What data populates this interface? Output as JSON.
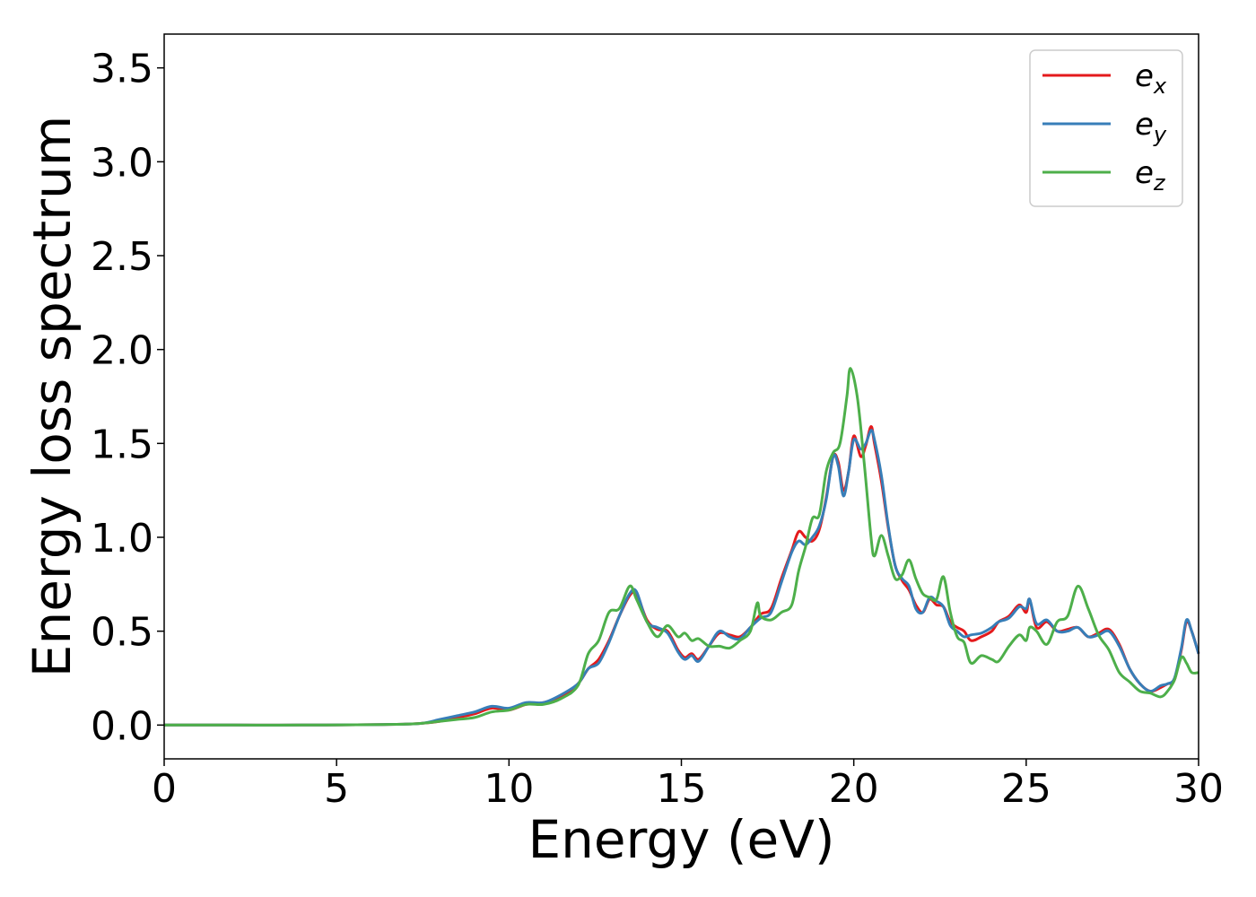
{
  "chart_data": {
    "type": "line",
    "title": "",
    "xlabel": "Energy (eV)",
    "ylabel": "Energy loss spectrum",
    "xlim": [
      0,
      30
    ],
    "ylim": [
      -0.18,
      3.68
    ],
    "xticks": [
      0,
      5,
      10,
      15,
      20,
      25,
      30
    ],
    "xtick_labels": [
      "0",
      "5",
      "10",
      "15",
      "20",
      "25",
      "30"
    ],
    "yticks": [
      0.0,
      0.5,
      1.0,
      1.5,
      2.0,
      2.5,
      3.0,
      3.5
    ],
    "ytick_labels": [
      "0.0",
      "0.5",
      "1.0",
      "1.5",
      "2.0",
      "2.5",
      "3.0",
      "3.5"
    ],
    "grid": false,
    "legend_position": "top-right",
    "series": [
      {
        "name": "e",
        "subscript": "x",
        "color": "#e41a1c",
        "x": [
          0,
          2,
          4,
          6,
          7,
          7.5,
          8,
          8.5,
          9,
          9.5,
          10,
          10.5,
          11,
          11.5,
          12,
          12.3,
          12.6,
          12.9,
          13.2,
          13.5,
          13.7,
          14,
          14.3,
          14.6,
          14.9,
          15.1,
          15.3,
          15.5,
          15.8,
          16.1,
          16.4,
          16.7,
          17,
          17.3,
          17.6,
          17.9,
          18.2,
          18.4,
          18.6,
          18.8,
          19,
          19.2,
          19.4,
          19.55,
          19.7,
          19.85,
          20,
          20.2,
          20.35,
          20.5,
          20.6,
          20.8,
          21,
          21.2,
          21.4,
          21.6,
          21.8,
          22,
          22.2,
          22.4,
          22.6,
          22.8,
          23,
          23.2,
          23.4,
          23.7,
          24,
          24.2,
          24.5,
          24.8,
          25,
          25.1,
          25.3,
          25.6,
          25.9,
          26.2,
          26.5,
          26.8,
          27.1,
          27.4,
          27.7,
          28,
          28.3,
          28.6,
          28.9,
          29.1,
          29.3,
          29.5,
          29.65,
          29.8,
          30
        ],
        "y": [
          0.0,
          0.0,
          0.0,
          0.002,
          0.005,
          0.01,
          0.02,
          0.04,
          0.06,
          0.09,
          0.08,
          0.11,
          0.12,
          0.15,
          0.22,
          0.3,
          0.35,
          0.45,
          0.58,
          0.69,
          0.7,
          0.56,
          0.51,
          0.5,
          0.4,
          0.36,
          0.38,
          0.35,
          0.42,
          0.49,
          0.48,
          0.47,
          0.52,
          0.59,
          0.62,
          0.78,
          0.93,
          1.03,
          1.0,
          0.98,
          1.04,
          1.21,
          1.43,
          1.4,
          1.25,
          1.35,
          1.54,
          1.43,
          1.49,
          1.59,
          1.5,
          1.3,
          1.05,
          0.85,
          0.77,
          0.72,
          0.64,
          0.6,
          0.67,
          0.64,
          0.63,
          0.55,
          0.52,
          0.5,
          0.45,
          0.47,
          0.5,
          0.55,
          0.58,
          0.64,
          0.6,
          0.67,
          0.52,
          0.55,
          0.5,
          0.51,
          0.52,
          0.47,
          0.49,
          0.51,
          0.43,
          0.3,
          0.22,
          0.18,
          0.2,
          0.22,
          0.24,
          0.4,
          0.55,
          0.5,
          0.38
        ]
      },
      {
        "name": "e",
        "subscript": "y",
        "color": "#377eb8",
        "x": [
          0,
          2,
          4,
          6,
          7,
          7.5,
          8,
          8.5,
          9,
          9.5,
          10,
          10.5,
          11,
          11.5,
          12,
          12.3,
          12.6,
          12.9,
          13.2,
          13.5,
          13.7,
          14,
          14.3,
          14.6,
          14.9,
          15.1,
          15.3,
          15.5,
          15.8,
          16.1,
          16.4,
          16.7,
          17,
          17.3,
          17.6,
          17.9,
          18.2,
          18.4,
          18.6,
          18.8,
          19,
          19.2,
          19.4,
          19.55,
          19.7,
          19.85,
          20,
          20.2,
          20.35,
          20.5,
          20.6,
          20.8,
          21,
          21.2,
          21.4,
          21.6,
          21.8,
          22,
          22.2,
          22.4,
          22.6,
          22.8,
          23,
          23.2,
          23.4,
          23.7,
          24,
          24.2,
          24.5,
          24.8,
          25,
          25.1,
          25.3,
          25.6,
          25.9,
          26.2,
          26.5,
          26.8,
          27.1,
          27.4,
          27.7,
          28,
          28.3,
          28.6,
          28.9,
          29.1,
          29.3,
          29.5,
          29.65,
          29.8,
          30
        ],
        "y": [
          0.0,
          0.0,
          0.0,
          0.002,
          0.005,
          0.01,
          0.03,
          0.05,
          0.07,
          0.1,
          0.09,
          0.12,
          0.12,
          0.16,
          0.22,
          0.3,
          0.33,
          0.44,
          0.58,
          0.7,
          0.71,
          0.55,
          0.52,
          0.49,
          0.39,
          0.35,
          0.37,
          0.34,
          0.42,
          0.5,
          0.47,
          0.46,
          0.52,
          0.57,
          0.6,
          0.76,
          0.92,
          0.98,
          0.96,
          1.0,
          1.06,
          1.2,
          1.43,
          1.38,
          1.22,
          1.35,
          1.52,
          1.47,
          1.5,
          1.57,
          1.52,
          1.33,
          1.06,
          0.85,
          0.78,
          0.74,
          0.62,
          0.6,
          0.68,
          0.66,
          0.63,
          0.53,
          0.5,
          0.47,
          0.48,
          0.49,
          0.52,
          0.55,
          0.57,
          0.63,
          0.62,
          0.67,
          0.54,
          0.56,
          0.5,
          0.5,
          0.52,
          0.47,
          0.48,
          0.5,
          0.42,
          0.3,
          0.22,
          0.18,
          0.21,
          0.22,
          0.25,
          0.41,
          0.56,
          0.5,
          0.38
        ]
      },
      {
        "name": "e",
        "subscript": "z",
        "color": "#4daf4a",
        "x": [
          0,
          2,
          4,
          6,
          7,
          7.5,
          8,
          8.5,
          9,
          9.5,
          10,
          10.5,
          11,
          11.5,
          12,
          12.3,
          12.6,
          12.9,
          13.2,
          13.5,
          13.7,
          14,
          14.3,
          14.6,
          14.9,
          15.1,
          15.3,
          15.5,
          15.8,
          16.1,
          16.4,
          16.7,
          17,
          17.2,
          17.3,
          17.6,
          17.9,
          18.2,
          18.4,
          18.6,
          18.8,
          19,
          19.2,
          19.4,
          19.6,
          19.8,
          19.9,
          20.1,
          20.3,
          20.5,
          20.6,
          20.8,
          21,
          21.2,
          21.4,
          21.6,
          21.8,
          22,
          22.2,
          22.4,
          22.6,
          22.8,
          23,
          23.2,
          23.4,
          23.7,
          24,
          24.2,
          24.5,
          24.8,
          25,
          25.1,
          25.3,
          25.6,
          25.9,
          26.2,
          26.5,
          26.8,
          27.1,
          27.4,
          27.7,
          28,
          28.3,
          28.6,
          28.9,
          29.1,
          29.3,
          29.5,
          29.65,
          29.8,
          30
        ],
        "y": [
          0.0,
          0.0,
          0.0,
          0.002,
          0.005,
          0.01,
          0.02,
          0.03,
          0.04,
          0.07,
          0.08,
          0.11,
          0.11,
          0.14,
          0.21,
          0.38,
          0.45,
          0.6,
          0.62,
          0.74,
          0.67,
          0.55,
          0.47,
          0.53,
          0.47,
          0.49,
          0.45,
          0.46,
          0.42,
          0.42,
          0.41,
          0.45,
          0.5,
          0.65,
          0.58,
          0.56,
          0.6,
          0.64,
          0.82,
          0.95,
          1.1,
          1.12,
          1.35,
          1.45,
          1.5,
          1.75,
          1.9,
          1.75,
          1.4,
          1.0,
          0.9,
          1.01,
          0.9,
          0.78,
          0.8,
          0.88,
          0.78,
          0.7,
          0.68,
          0.67,
          0.79,
          0.6,
          0.47,
          0.44,
          0.33,
          0.37,
          0.35,
          0.34,
          0.42,
          0.48,
          0.45,
          0.52,
          0.5,
          0.43,
          0.55,
          0.58,
          0.74,
          0.62,
          0.48,
          0.4,
          0.28,
          0.23,
          0.18,
          0.17,
          0.15,
          0.18,
          0.24,
          0.36,
          0.33,
          0.28,
          0.28
        ]
      }
    ]
  }
}
